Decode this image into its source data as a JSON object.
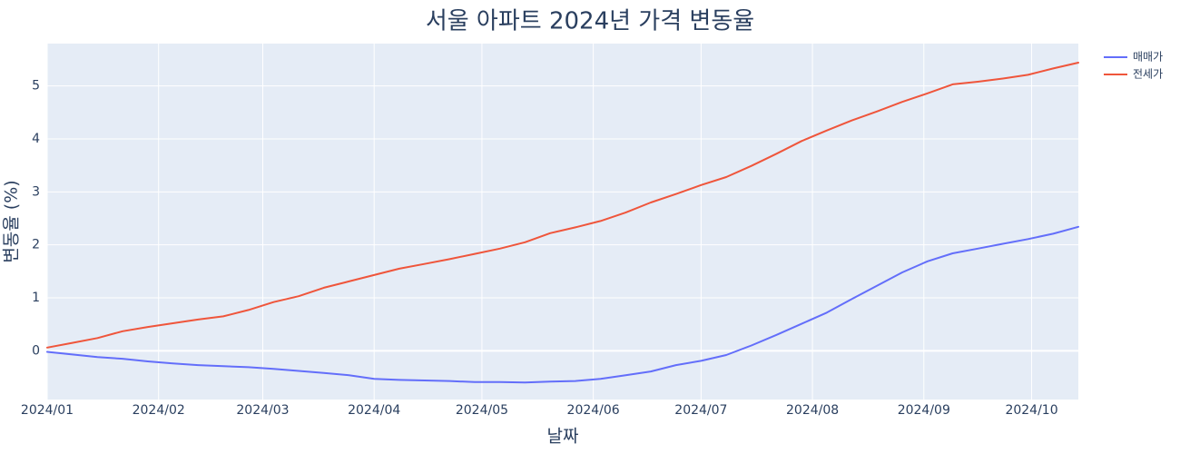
{
  "chart_data": {
    "type": "line",
    "title": "서울 아파트 2024년 가격 변동율",
    "xlabel": "날짜",
    "ylabel": "변동율 (%)",
    "xlim": [
      "2024-01-01",
      "2024-10-14"
    ],
    "ylim": [
      -0.92,
      5.8
    ],
    "x_ticks": [
      "2024-01-01",
      "2024-02-01",
      "2024-03-01",
      "2024-04-01",
      "2024-05-01",
      "2024-06-01",
      "2024-07-01",
      "2024-08-01",
      "2024-09-01",
      "2024-10-01"
    ],
    "x_tick_labels": [
      "2024/01",
      "2024/02",
      "2024/03",
      "2024/04",
      "2024/05",
      "2024/06",
      "2024/07",
      "2024/08",
      "2024/09",
      "2024/10"
    ],
    "y_ticks": [
      0,
      1,
      2,
      3,
      4,
      5
    ],
    "y_tick_labels": [
      "0",
      "1",
      "2",
      "3",
      "4",
      "5"
    ],
    "grid": true,
    "legend_position": "top-right",
    "x": [
      "2024-01-01",
      "2024-01-08",
      "2024-01-15",
      "2024-01-22",
      "2024-01-29",
      "2024-02-05",
      "2024-02-12",
      "2024-02-19",
      "2024-02-26",
      "2024-03-04",
      "2024-03-11",
      "2024-03-18",
      "2024-03-25",
      "2024-04-01",
      "2024-04-08",
      "2024-04-15",
      "2024-04-22",
      "2024-04-29",
      "2024-05-06",
      "2024-05-13",
      "2024-05-20",
      "2024-05-27",
      "2024-06-03",
      "2024-06-10",
      "2024-06-17",
      "2024-06-24",
      "2024-07-01",
      "2024-07-08",
      "2024-07-15",
      "2024-07-22",
      "2024-07-29",
      "2024-08-05",
      "2024-08-12",
      "2024-08-19",
      "2024-08-26",
      "2024-09-02",
      "2024-09-09",
      "2024-09-16",
      "2024-09-23",
      "2024-09-30",
      "2024-10-07",
      "2024-10-14"
    ],
    "series": [
      {
        "name": "매매가",
        "color": "#636efa",
        "values": [
          -0.02,
          -0.07,
          -0.12,
          -0.15,
          -0.2,
          -0.24,
          -0.27,
          -0.29,
          -0.31,
          -0.34,
          -0.38,
          -0.42,
          -0.46,
          -0.53,
          -0.55,
          -0.56,
          -0.57,
          -0.59,
          -0.59,
          -0.6,
          -0.58,
          -0.57,
          -0.53,
          -0.46,
          -0.39,
          -0.27,
          -0.19,
          -0.08,
          0.1,
          0.3,
          0.51,
          0.72,
          0.98,
          1.23,
          1.48,
          1.69,
          1.84,
          1.93,
          2.02,
          2.11,
          2.21,
          2.34
        ]
      },
      {
        "name": "전세가",
        "color": "#ef553b",
        "values": [
          0.06,
          0.15,
          0.24,
          0.37,
          0.45,
          0.52,
          0.59,
          0.65,
          0.77,
          0.92,
          1.03,
          1.19,
          1.31,
          1.43,
          1.55,
          1.64,
          1.73,
          1.83,
          1.93,
          2.05,
          2.22,
          2.33,
          2.45,
          2.61,
          2.8,
          2.96,
          3.13,
          3.28,
          3.49,
          3.72,
          3.96,
          4.16,
          4.35,
          4.52,
          4.7,
          4.86,
          5.03,
          5.08,
          5.14,
          5.21,
          5.33,
          5.44
        ]
      }
    ]
  }
}
